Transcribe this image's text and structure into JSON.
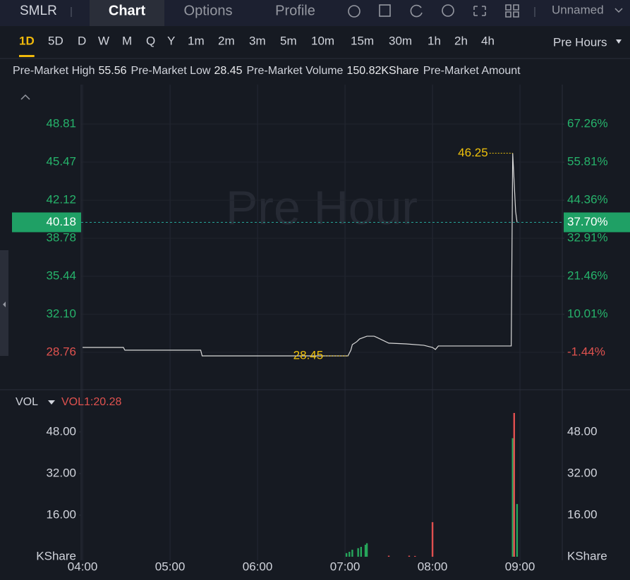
{
  "header": {
    "symbol": "SMLR",
    "tabs": [
      "Chart",
      "Options",
      "Profile"
    ],
    "active_tab": 0,
    "layout_name": "Unnamed"
  },
  "timeframes": {
    "items": [
      "1D",
      "5D",
      "D",
      "W",
      "M",
      "Q",
      "Y",
      "1m",
      "2m",
      "3m",
      "5m",
      "10m",
      "15m",
      "30m",
      "1h",
      "2h",
      "4h"
    ],
    "active": 0,
    "session": "Pre Hours"
  },
  "info": [
    {
      "label": "Pre-Market High",
      "value": "55.56"
    },
    {
      "label": "Pre-Market Low",
      "value": "28.45"
    },
    {
      "label": "Pre-Market Volume",
      "value": "150.82KShare"
    },
    {
      "label": "Pre-Market Amount"
    }
  ],
  "chart_data": [
    {
      "type": "line",
      "watermark": "Pre Hour",
      "color": "#d9d9d9",
      "grid": true,
      "x": [
        "04:00",
        "04:28",
        "04:29",
        "05:21",
        "05:22",
        "07:02",
        "07:04",
        "07:05",
        "07:08",
        "07:10",
        "07:15",
        "07:20",
        "07:22",
        "07:30",
        "07:42",
        "07:54",
        "08:00",
        "08:02",
        "08:04",
        "08:54",
        "08:55",
        "08:57",
        "08:58"
      ],
      "values": [
        29.19,
        29.19,
        28.95,
        28.95,
        28.45,
        28.45,
        28.95,
        29.44,
        29.69,
        29.94,
        30.18,
        30.18,
        30.06,
        29.57,
        29.5,
        29.38,
        29.19,
        29.01,
        29.32,
        29.32,
        46.25,
        41.14,
        40.18
      ],
      "xlim": [
        "03:59",
        "09:29"
      ],
      "ylim": [
        25.54,
        52.28
      ],
      "yticks": [
        48.81,
        45.47,
        42.12,
        38.78,
        35.44,
        {
          "value": 32.1,
          "label": "32.10"
        },
        28.76
      ],
      "y2lim": [
        -12.47,
        79.16
      ],
      "y2ticks": [
        {
          "value": 67.26,
          "label": "67.26%"
        },
        {
          "value": 55.81,
          "label": "55.81%"
        },
        {
          "value": 44.36,
          "label": "44.36%"
        },
        {
          "value": 32.91,
          "label": "32.91%"
        },
        {
          "value": 21.46,
          "label": "21.46%"
        },
        {
          "value": 10.01,
          "label": "10.01%"
        },
        {
          "value": -1.44,
          "label": "-1.44%"
        }
      ],
      "last_price": {
        "value": 40.18,
        "change": {
          "value": 37.7,
          "label": "37.70%"
        }
      },
      "high_marker": {
        "x": "08:55",
        "value": 46.25
      },
      "low_marker": {
        "x": "07:02",
        "value": 28.45
      }
    },
    {
      "type": "bar",
      "title": "VOL",
      "indicator": "VOL1:20.28",
      "unit": "KShare",
      "x": [
        "07:01",
        "07:03",
        "07:05",
        "07:09",
        "07:11",
        "07:14",
        "07:15",
        "07:30",
        "07:44",
        "07:48",
        "08:00",
        "08:55",
        "08:56",
        "08:58"
      ],
      "values": [
        1.4,
        1.9,
        2.7,
        3.3,
        3.8,
        4.6,
        5.2,
        0.4,
        0.4,
        0.3,
        13.3,
        45.6,
        55.3,
        20.28
      ],
      "colors": [
        "#26a65b",
        "#26a65b",
        "#26a65b",
        "#26a65b",
        "#26a65b",
        "#26a65b",
        "#26a65b",
        "#e04f4f",
        "#e04f4f",
        "#e04f4f",
        "#e04f4f",
        "#26a65b",
        "#e04f4f",
        "#26a65b"
      ],
      "xlim": [
        "03:59",
        "09:29"
      ],
      "ylim": [
        0,
        63.7
      ],
      "yticks": [
        {
          "value": 48,
          "label": "48.00"
        },
        {
          "value": 32,
          "label": "32.00"
        },
        {
          "value": 16,
          "label": "16.00"
        }
      ],
      "xticks": [
        "04:00",
        "05:00",
        "06:00",
        "07:00",
        "08:00",
        "09:00"
      ]
    }
  ]
}
